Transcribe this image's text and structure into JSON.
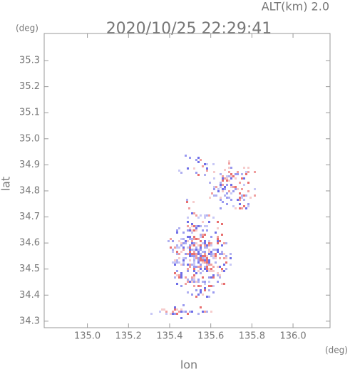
{
  "chart_data": {
    "type": "radar-map",
    "title": "2020/10/25 22:29:41",
    "subtitle": "ALT(km) 2.0",
    "x_label": "lon",
    "x_unit": "(deg)",
    "y_label": "lat",
    "y_unit": "(deg)",
    "xlim": [
      134.79,
      136.18
    ],
    "ylim": [
      34.275,
      35.404
    ],
    "xticks": [
      {
        "value": 135.0,
        "label": "135.0"
      },
      135.2,
      135.4,
      135.6,
      135.8,
      {
        "value": 136.0,
        "label": "136.0"
      }
    ],
    "yticks": [
      34.3,
      34.4,
      34.5,
      34.6,
      34.7,
      34.8,
      34.9,
      {
        "value": 35.0,
        "label": "35.0"
      },
      35.1,
      35.2,
      35.3
    ]
  }
}
